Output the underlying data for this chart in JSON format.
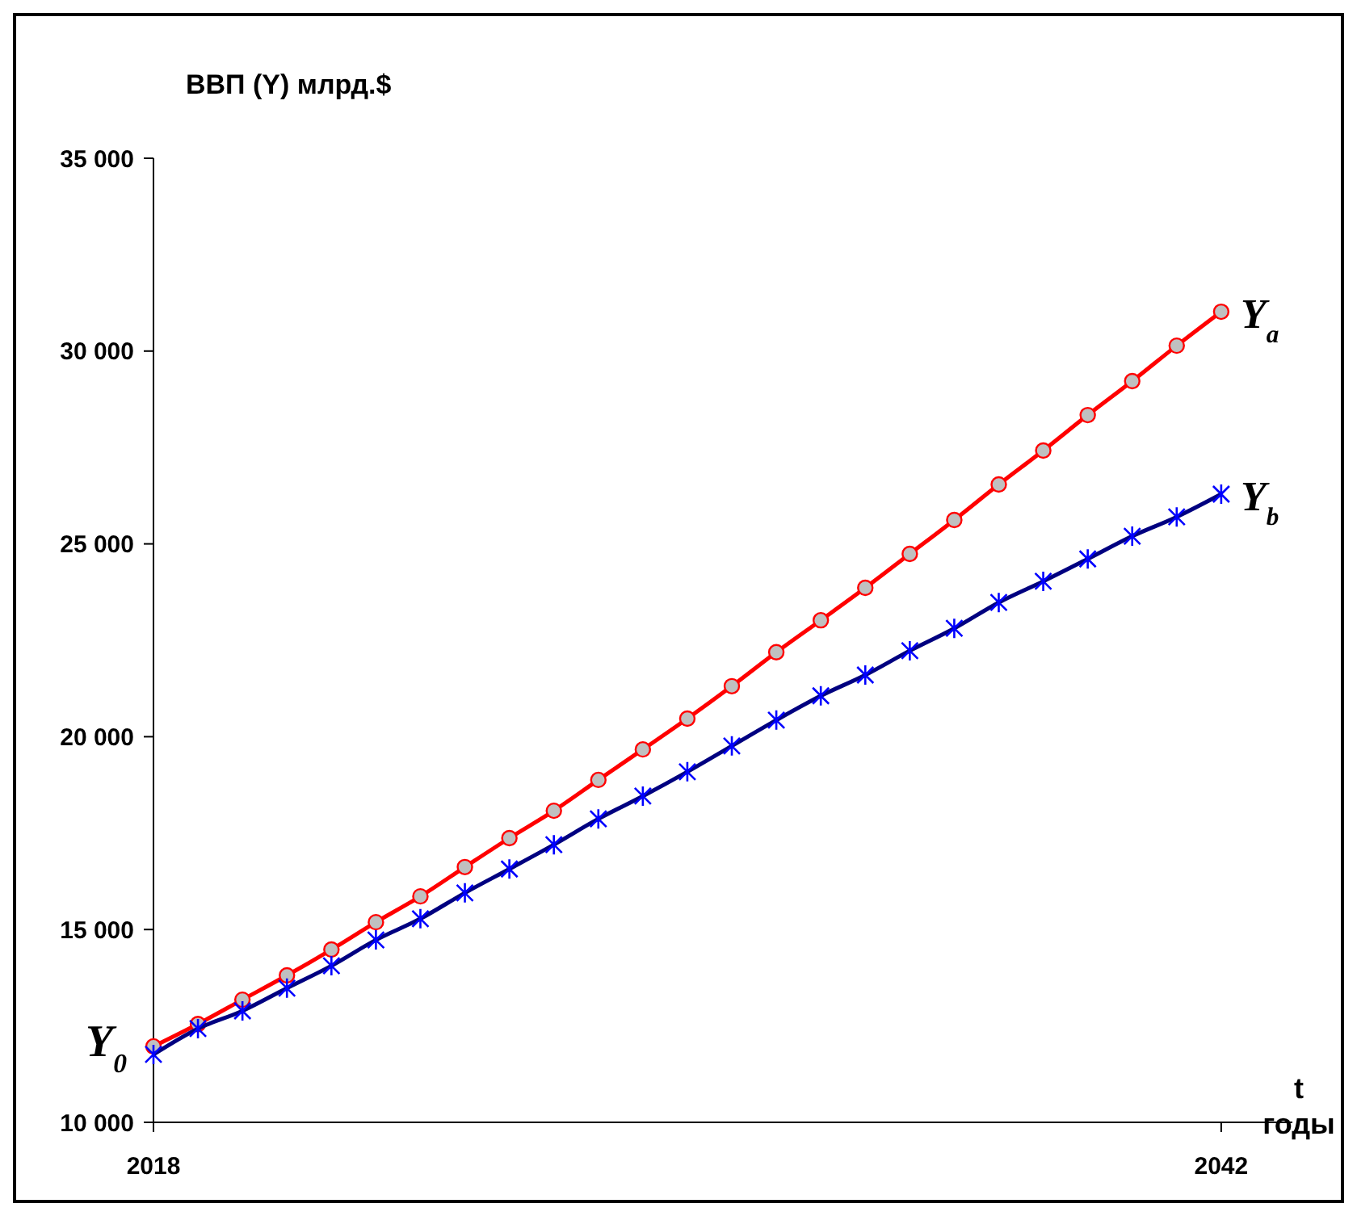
{
  "chart_data": {
    "type": "line",
    "ylabel": "ВВП (Y) млрд.$",
    "xlabel": "t годы",
    "x": [
      2018,
      2019,
      2020,
      2021,
      2022,
      2023,
      2024,
      2025,
      2026,
      2027,
      2028,
      2029,
      2030,
      2031,
      2032,
      2033,
      2034,
      2035,
      2036,
      2037,
      2038,
      2039,
      2040,
      2041,
      2042
    ],
    "series": [
      {
        "name": "Y$_{a}$",
        "color": "#ff0000",
        "marker": "circle",
        "values": [
          11970,
          12550,
          13180,
          13810,
          14480,
          15190,
          15860,
          16620,
          17370,
          18080,
          18880,
          19670,
          20470,
          21310,
          22190,
          23020,
          23860,
          24740,
          25620,
          26540,
          27420,
          28340,
          29220,
          30140,
          31020
        ]
      },
      {
        "name": "Y$_{b}$",
        "color": "#000080",
        "marker": "cross",
        "values": [
          11760,
          12430,
          12890,
          13480,
          14060,
          14730,
          15280,
          15950,
          16570,
          17200,
          17870,
          18460,
          19090,
          19760,
          20430,
          21060,
          21600,
          22230,
          22810,
          23480,
          24030,
          24610,
          25200,
          25700,
          26290
        ]
      }
    ],
    "xlim": [
      2018,
      2043.6
    ],
    "xticks": [
      2018,
      2042
    ],
    "ylim": [
      10000,
      35000
    ],
    "yticks": [
      {
        "value": 10000,
        "label": "10 000"
      },
      {
        "value": 15000,
        "label": "15 000"
      },
      {
        "value": 20000,
        "label": "20 000"
      },
      {
        "value": 25000,
        "label": "25 000"
      },
      {
        "value": 30000,
        "label": "30 000"
      },
      {
        "value": 35000,
        "label": "35 000"
      }
    ],
    "annotations": [
      {
        "text": "Y$_{0}$",
        "x": 2018,
        "y": 11970
      }
    ],
    "grid": false,
    "legend": false,
    "line_style": "solid"
  }
}
